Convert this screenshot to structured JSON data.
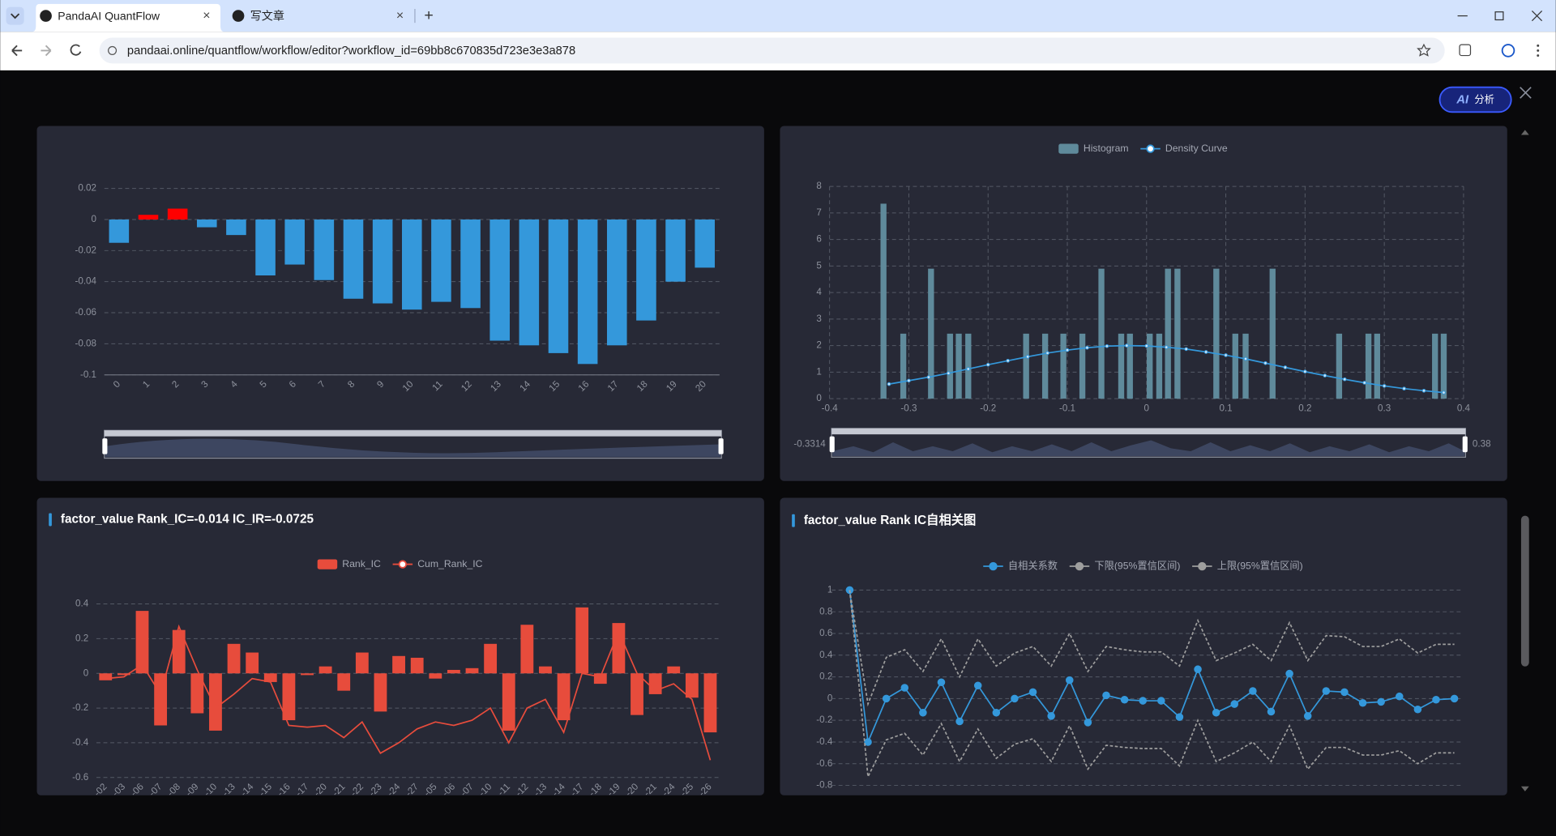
{
  "browser": {
    "tabs": [
      "PandaAI QuantFlow",
      "写文章"
    ],
    "url": "pandaai.online/quantflow/workflow/editor?workflow_id=69bb8c670835d723e3e3a878"
  },
  "ai_button": {
    "icon_text": "AI",
    "label": "分析"
  },
  "chart_data": [
    {
      "type": "bar",
      "categories": [
        0,
        1,
        2,
        3,
        4,
        5,
        6,
        7,
        8,
        9,
        10,
        11,
        12,
        13,
        14,
        15,
        16,
        17,
        18,
        19,
        20
      ],
      "values": [
        -0.015,
        0.003,
        0.007,
        -0.005,
        -0.01,
        -0.036,
        -0.029,
        -0.039,
        -0.051,
        -0.054,
        -0.058,
        -0.053,
        -0.057,
        -0.078,
        -0.081,
        -0.086,
        -0.093,
        -0.081,
        -0.065,
        -0.04,
        -0.031
      ],
      "positive_color": "#ff0000",
      "negative_color": "#3498db",
      "ylim": [
        -0.1,
        0.02
      ],
      "yticks": [
        0.02,
        0,
        -0.02,
        -0.04,
        -0.06,
        -0.08,
        -0.1
      ],
      "grid": true
    },
    {
      "type": "bar",
      "legend": "top",
      "series": [
        {
          "name": "Histogram",
          "type": "bar",
          "color": "#5f8a9b",
          "x": [
            -0.332,
            -0.307,
            -0.272,
            -0.248,
            -0.237,
            -0.225,
            -0.152,
            -0.128,
            -0.105,
            -0.081,
            -0.057,
            -0.032,
            -0.021,
            0.004,
            0.016,
            0.027,
            0.039,
            0.088,
            0.112,
            0.125,
            0.159,
            0.243,
            0.28,
            0.291,
            0.364,
            0.375
          ],
          "values": [
            7.35,
            2.45,
            4.9,
            2.45,
            2.45,
            2.45,
            2.45,
            2.45,
            2.45,
            2.45,
            4.9,
            2.45,
            2.45,
            2.45,
            2.45,
            4.9,
            4.9,
            4.9,
            2.45,
            2.45,
            4.9,
            2.45,
            2.45,
            2.45,
            2.45,
            2.45
          ]
        },
        {
          "name": "Density Curve",
          "type": "line",
          "color": "#3498db",
          "symbol": "emptyCircle",
          "symbol_size": 3,
          "x": [
            -0.325,
            -0.3,
            -0.275,
            -0.25,
            -0.225,
            -0.2,
            -0.175,
            -0.15,
            -0.125,
            -0.1,
            -0.075,
            -0.05,
            -0.025,
            0,
            0.025,
            0.05,
            0.075,
            0.1,
            0.125,
            0.15,
            0.175,
            0.2,
            0.225,
            0.25,
            0.275,
            0.3,
            0.325,
            0.35,
            0.375
          ],
          "values": [
            0.55,
            0.68,
            0.81,
            0.96,
            1.12,
            1.28,
            1.43,
            1.58,
            1.72,
            1.83,
            1.92,
            1.98,
            2.0,
            1.99,
            1.94,
            1.87,
            1.76,
            1.64,
            1.5,
            1.34,
            1.18,
            1.02,
            0.87,
            0.73,
            0.6,
            0.48,
            0.38,
            0.3,
            0.23
          ]
        }
      ],
      "xlim": [
        -0.4,
        0.4
      ],
      "xticks": [
        -0.4,
        -0.3,
        -0.2,
        -0.1,
        0,
        0.1,
        0.2,
        0.3,
        0.4
      ],
      "ylim": [
        0,
        8
      ],
      "yticks": [
        0,
        1,
        2,
        3,
        4,
        5,
        6,
        7,
        8
      ],
      "grid": true,
      "xgrid": true,
      "zoom_labels": [
        "-0.3314",
        "0.38"
      ]
    },
    {
      "type": "bar",
      "title": "factor_value Rank_IC=-0.014 IC_IR=-0.0725",
      "legend": "top",
      "categories": [
        "-02",
        "-03",
        "-06",
        "-07",
        "-08",
        "-09",
        "-10",
        "-13",
        "-14",
        "-15",
        "-16",
        "-17",
        "-20",
        "-21",
        "-22",
        "-23",
        "-24",
        "-27",
        "-05",
        "-06",
        "-07",
        "-10",
        "-11",
        "-12",
        "-13",
        "-14",
        "-17",
        "-18",
        "-19",
        "-20",
        "-21",
        "-24",
        "-25",
        "-26"
      ],
      "series": [
        {
          "name": "Rank_IC",
          "type": "bar",
          "color": "#e74c3c",
          "values": [
            -0.04,
            -0.01,
            0.36,
            -0.3,
            0.25,
            -0.23,
            -0.33,
            0.17,
            0.12,
            -0.05,
            -0.27,
            -0.01,
            0.04,
            -0.1,
            0.12,
            -0.22,
            0.1,
            0.09,
            -0.03,
            0.02,
            0.03,
            0.17,
            -0.33,
            0.28,
            0.04,
            -0.27,
            0.38,
            -0.06,
            0.29,
            -0.24,
            -0.12,
            0.04,
            -0.14,
            -0.34
          ]
        },
        {
          "name": "Cum_Rank_IC",
          "type": "line",
          "color": "#e74c3c",
          "symbol": "emptyCircle",
          "values": [
            -0.03,
            -0.02,
            0.05,
            -0.12,
            0.27,
            0.02,
            -0.2,
            -0.12,
            -0.03,
            -0.05,
            -0.3,
            -0.31,
            -0.3,
            -0.37,
            -0.28,
            -0.46,
            -0.4,
            -0.32,
            -0.28,
            -0.3,
            -0.27,
            -0.2,
            -0.4,
            -0.2,
            -0.15,
            -0.34,
            0,
            -0.02,
            0.24,
            0,
            -0.1,
            -0.06,
            -0.15,
            -0.5
          ]
        }
      ],
      "ylim": [
        -0.6,
        0.4
      ],
      "yticks": [
        0.4,
        0.2,
        0,
        -0.2,
        -0.4,
        -0.6
      ],
      "grid": true
    },
    {
      "type": "line",
      "title": "factor_value Rank IC自相关图",
      "legend": "top",
      "series": [
        {
          "name": "自相关系数",
          "type": "line",
          "color": "#3498db",
          "symbol": "circle",
          "symbol_size": 7,
          "values": [
            1,
            -0.4,
            0,
            0.1,
            -0.13,
            0.15,
            -0.21,
            0.12,
            -0.13,
            0,
            0.06,
            -0.16,
            0.17,
            -0.22,
            0.03,
            -0.01,
            -0.02,
            -0.02,
            -0.17,
            0.27,
            -0.13,
            -0.05,
            0.07,
            -0.12,
            0.23,
            -0.16,
            0.07,
            0.06,
            -0.04,
            -0.03,
            0.02,
            -0.1,
            -0.01,
            0
          ]
        },
        {
          "name": "下限(95%置信区间)",
          "type": "line",
          "color": "#9e9e9e",
          "symbol": "circle",
          "line_style": "dashed",
          "values": [
            1,
            -0.72,
            -0.38,
            -0.32,
            -0.52,
            -0.23,
            -0.58,
            -0.28,
            -0.55,
            -0.42,
            -0.37,
            -0.58,
            -0.25,
            -0.65,
            -0.43,
            -0.45,
            -0.46,
            -0.46,
            -0.62,
            -0.2,
            -0.58,
            -0.5,
            -0.4,
            -0.58,
            -0.25,
            -0.65,
            -0.45,
            -0.45,
            -0.52,
            -0.52,
            -0.48,
            -0.6,
            -0.5,
            -0.5
          ]
        },
        {
          "name": "上限(95%置信区间)",
          "type": "line",
          "color": "#9e9e9e",
          "symbol": "circle",
          "line_style": "dashed",
          "values": [
            1,
            -0.05,
            0.38,
            0.45,
            0.25,
            0.55,
            0.2,
            0.55,
            0.3,
            0.42,
            0.48,
            0.3,
            0.6,
            0.25,
            0.48,
            0.45,
            0.43,
            0.43,
            0.3,
            0.72,
            0.35,
            0.42,
            0.5,
            0.35,
            0.7,
            0.35,
            0.58,
            0.57,
            0.48,
            0.48,
            0.55,
            0.42,
            0.5,
            0.5
          ]
        }
      ],
      "ylim": [
        -0.8,
        1
      ],
      "yticks": [
        1,
        0.8,
        0.6,
        0.4,
        0.2,
        0,
        -0.2,
        -0.4,
        -0.6,
        -0.8
      ],
      "grid": true
    }
  ]
}
